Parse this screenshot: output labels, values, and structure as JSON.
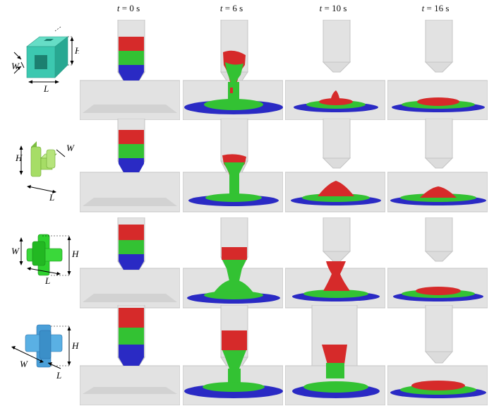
{
  "figure": {
    "time_labels": [
      {
        "t_var": "t",
        "eq": " = 0 s"
      },
      {
        "t_var": "t",
        "eq": " = 6 s"
      },
      {
        "t_var": "t",
        "eq": " = 10 s"
      },
      {
        "t_var": "t",
        "eq": " = 16 s"
      }
    ],
    "rows": [
      {
        "shape": "hollow-cube",
        "dim_labels": {
          "W": "W",
          "H": "H",
          "L": "L"
        }
      },
      {
        "shape": "l-block",
        "dim_labels": {
          "W": "W",
          "H": "H",
          "L": "L"
        }
      },
      {
        "shape": "cross-particle",
        "dim_labels": {
          "W": "W",
          "H": "H",
          "L": "L"
        }
      },
      {
        "shape": "plus-block",
        "dim_labels": {
          "W": "W",
          "H": "H",
          "L": "L"
        }
      }
    ],
    "colors": {
      "red": "#d62a2a",
      "green": "#33c233",
      "blue": "#2a2ac4",
      "hopper": "#e2e2e2",
      "hopper_edge": "#c4c4c4",
      "shape_cube": "#3cc8b0",
      "shape_l": "#a6dd66",
      "shape_cross": "#2ed12e",
      "shape_plus": "#4a9fd8"
    }
  }
}
